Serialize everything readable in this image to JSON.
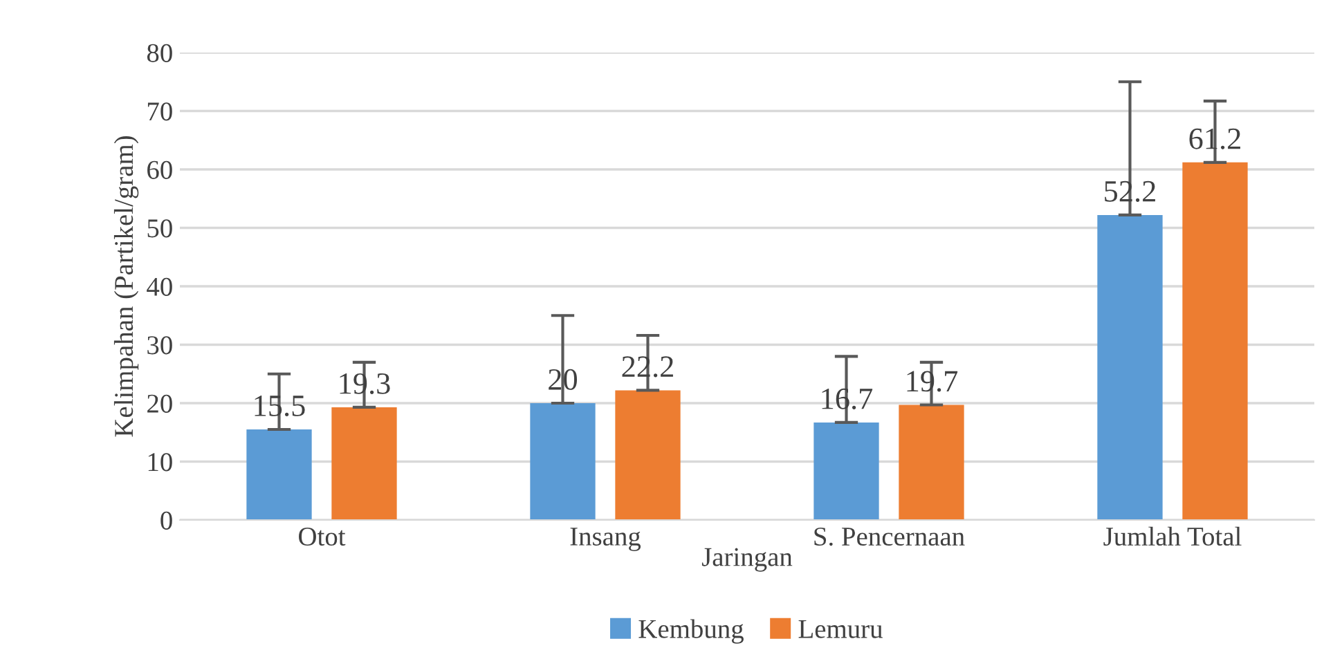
{
  "chart_data": {
    "type": "bar",
    "xlabel": "Jaringan",
    "ylabel": "Kelimpahan (Partikel/gram)",
    "categories": [
      "Otot",
      "Insang",
      "S. Pencernaan",
      "Jumlah Total"
    ],
    "series": [
      {
        "name": "Kembung",
        "color": "#5b9bd5",
        "values": [
          15.5,
          20,
          16.7,
          52.2
        ],
        "errors": [
          [
            15.5,
            25
          ],
          [
            20,
            35
          ],
          [
            16.7,
            28
          ],
          [
            52.2,
            75
          ]
        ]
      },
      {
        "name": "Lemuru",
        "color": "#ed7d31",
        "values": [
          19.3,
          22.2,
          19.7,
          61.2
        ],
        "errors": [
          [
            19.3,
            27
          ],
          [
            22.2,
            31.6
          ],
          [
            19.7,
            27
          ],
          [
            61.2,
            71.7
          ]
        ]
      }
    ],
    "ylim": [
      0,
      80
    ],
    "yticks": [
      0,
      10,
      20,
      30,
      40,
      50,
      60,
      70,
      80
    ],
    "grid": "y",
    "legend": "bottom",
    "data_labels": true
  }
}
